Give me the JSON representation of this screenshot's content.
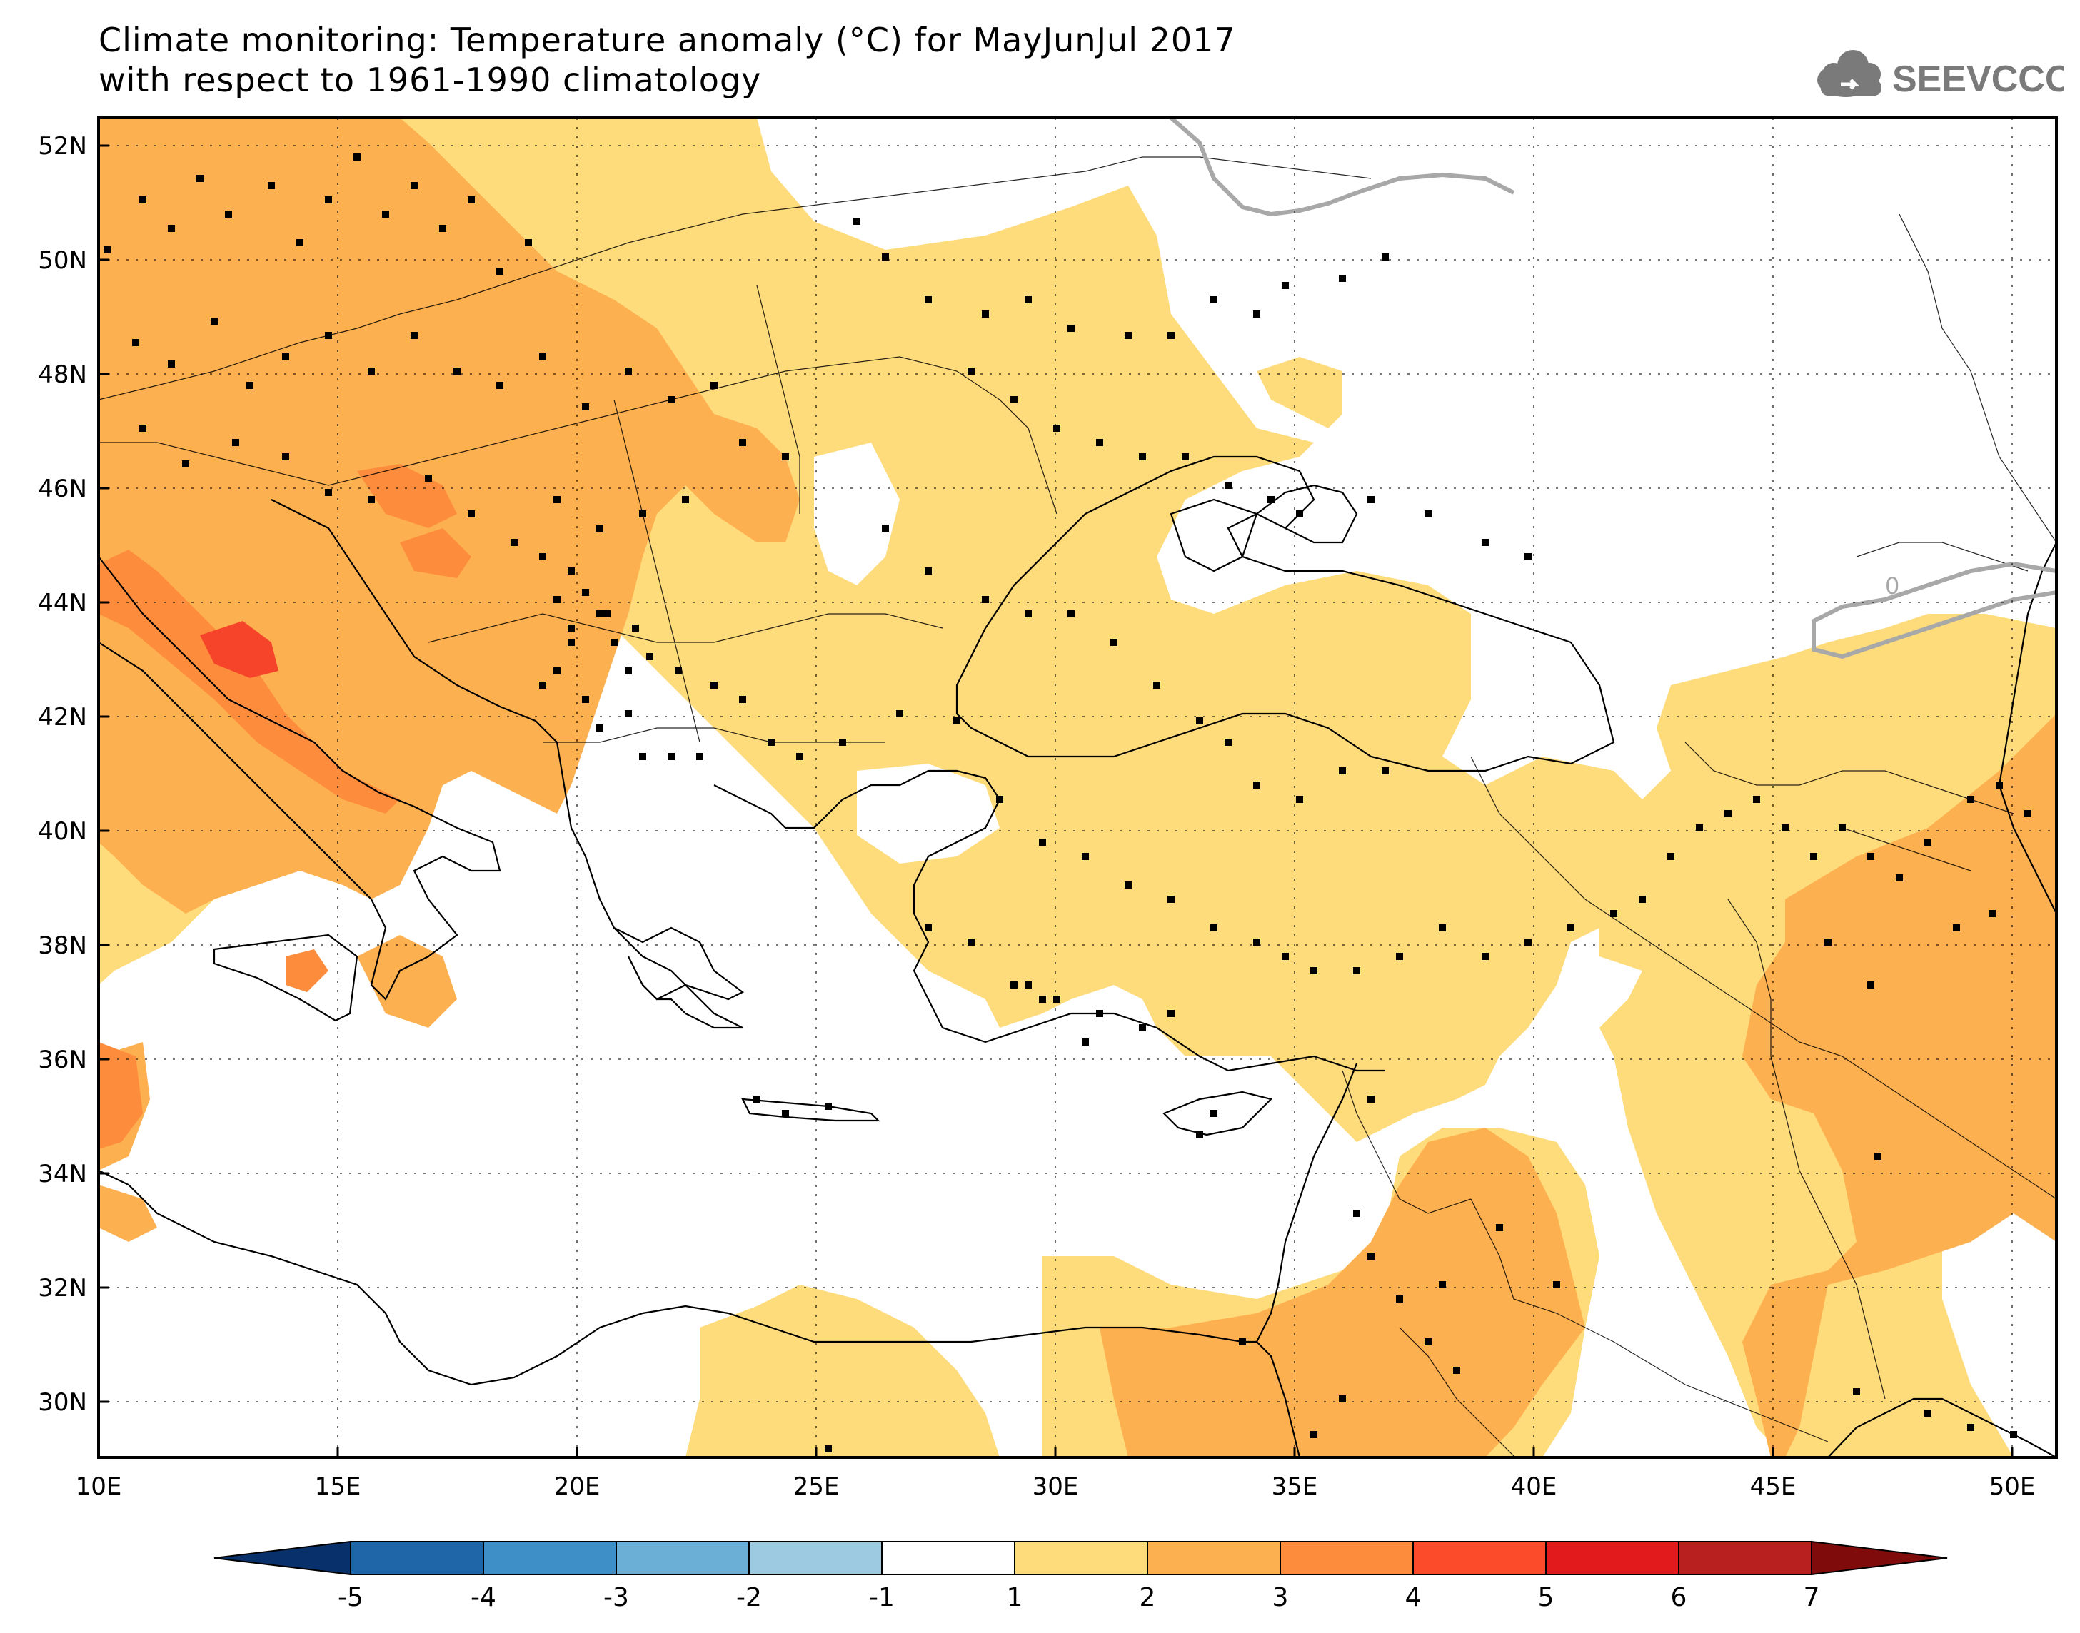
{
  "title": {
    "line1": "Climate monitoring: Temperature anomaly (°C) for MayJunJul 2017",
    "line2": "with respect to 1961-1990 climatology"
  },
  "logo": {
    "text": "SEEVCCC",
    "icon": "cloud-icon"
  },
  "map": {
    "lat_labels": [
      "52N",
      "50N",
      "48N",
      "46N",
      "44N",
      "42N",
      "40N",
      "38N",
      "36N",
      "34N",
      "32N",
      "30N"
    ],
    "lon_labels": [
      "10E",
      "15E",
      "20E",
      "25E",
      "30E",
      "35E",
      "40E",
      "45E",
      "50E"
    ],
    "contour_label": "0",
    "colors": {
      "level_1_2": "#FEDB7B",
      "level_2_3": "#FDB04F",
      "level_3_4": "#FD8D3C",
      "level_4_5": "#F5442A",
      "land_outline": "#000000",
      "zero_contour": "#A8A8A8"
    }
  },
  "colorbar": {
    "ticks": [
      "-5",
      "-4",
      "-3",
      "-2",
      "-1",
      "1",
      "2",
      "3",
      "4",
      "5",
      "6",
      "7"
    ],
    "colors": [
      "#08306B",
      "#1F66A8",
      "#3E8FC8",
      "#6BAED6",
      "#9ECAE1",
      "#FFFFFF",
      "#FEDB7B",
      "#FDB04F",
      "#FD8D3C",
      "#FB4B2A",
      "#E31A1C",
      "#B81F1F",
      "#800B0B"
    ]
  }
}
